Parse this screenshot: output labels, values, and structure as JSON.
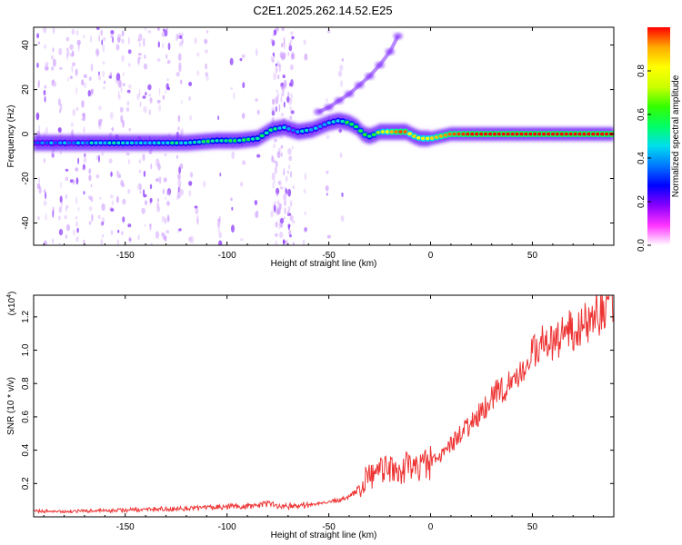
{
  "title": "C2E1.2025.262.14.52.E25",
  "chart_data": [
    {
      "type": "heatmap",
      "xlabel": "Height of straight line (km)",
      "ylabel": "Frequency (Hz)",
      "xlim": [
        -195,
        90
      ],
      "ylim": [
        -50,
        48
      ],
      "xticks": [
        -150,
        -100,
        -50,
        0,
        50
      ],
      "yticks": [
        -40,
        -20,
        0,
        20,
        40
      ],
      "grid": false,
      "colorbar": {
        "label": "Normalized spectral amplitude",
        "range": [
          0,
          1
        ],
        "ticks": [
          0.0,
          0.2,
          0.4,
          0.6,
          0.8
        ],
        "colors": [
          "#ffffff",
          "#ff33ff",
          "#8800ff",
          "#0000ff",
          "#0077ff",
          "#00ddee",
          "#00ff66",
          "#33ff00",
          "#ccff00",
          "#ffff00",
          "#ffaa00",
          "#ff0000"
        ]
      },
      "ridge": {
        "x": [
          -195,
          -180,
          -160,
          -140,
          -120,
          -105,
          -95,
          -85,
          -78,
          -72,
          -65,
          -58,
          -50,
          -45,
          -40,
          -36,
          -33,
          -30,
          -27,
          -25,
          -22,
          -18,
          -15,
          -12,
          -8,
          -5,
          0,
          5,
          10,
          20,
          40,
          60,
          90
        ],
        "y": [
          -4,
          -4,
          -4,
          -4,
          -4,
          -3,
          -3,
          -2,
          2,
          3,
          1,
          2,
          5,
          6,
          5,
          3,
          0,
          -1,
          0,
          1,
          1,
          1,
          1,
          1,
          -1,
          -2,
          -2,
          -1,
          0,
          0,
          0,
          0,
          0
        ],
        "amplitude": [
          0.35,
          0.4,
          0.45,
          0.45,
          0.5,
          0.55,
          0.55,
          0.5,
          0.55,
          0.45,
          0.4,
          0.45,
          0.45,
          0.5,
          0.6,
          0.5,
          0.55,
          0.55,
          0.6,
          0.75,
          0.85,
          0.95,
          0.95,
          0.9,
          0.85,
          0.8,
          0.85,
          0.9,
          0.95,
          1.0,
          1.0,
          1.0,
          1.0
        ]
      },
      "harmonic_branch": {
        "x": [
          -55,
          -50,
          -45,
          -40,
          -35,
          -30,
          -25,
          -20,
          -16
        ],
        "y": [
          10,
          12,
          15,
          18,
          22,
          26,
          31,
          37,
          44
        ],
        "amplitude": [
          0.3,
          0.3,
          0.3,
          0.3,
          0.3,
          0.25,
          0.25,
          0.25,
          0.25
        ]
      }
    },
    {
      "type": "line",
      "xlabel": "Height of straight line (km)",
      "ylabel": "SNR (10 * v/v)",
      "yscale_note": "(x10",
      "yscale_exp": "4",
      "xlim": [
        -195,
        90
      ],
      "ylim": [
        0,
        13300
      ],
      "xticks": [
        -150,
        -100,
        -50,
        0,
        50
      ],
      "yticks": [
        2000,
        4000,
        6000,
        8000,
        10000,
        12000
      ],
      "ytick_labels": [
        "0.2",
        "0.4",
        "0.6",
        "0.8",
        "1.0",
        "1.2"
      ],
      "color": "#ee3333",
      "grid": false,
      "x": [
        -195,
        -180,
        -160,
        -140,
        -120,
        -100,
        -90,
        -80,
        -70,
        -60,
        -55,
        -50,
        -45,
        -40,
        -35,
        -32,
        -30,
        -28,
        -25,
        -20,
        -15,
        -10,
        -5,
        0,
        5,
        10,
        15,
        20,
        25,
        30,
        35,
        40,
        45,
        50,
        55,
        60,
        65,
        70,
        75,
        80,
        85,
        90
      ],
      "y": [
        350,
        330,
        360,
        450,
        500,
        600,
        650,
        750,
        650,
        700,
        800,
        900,
        1000,
        1200,
        1700,
        2300,
        2500,
        2600,
        2700,
        2800,
        2900,
        3000,
        3100,
        3300,
        3700,
        4300,
        5000,
        5600,
        6400,
        7100,
        7700,
        8300,
        9000,
        9700,
        10300,
        10600,
        11000,
        11100,
        11600,
        12100,
        12500,
        12900
      ]
    }
  ]
}
